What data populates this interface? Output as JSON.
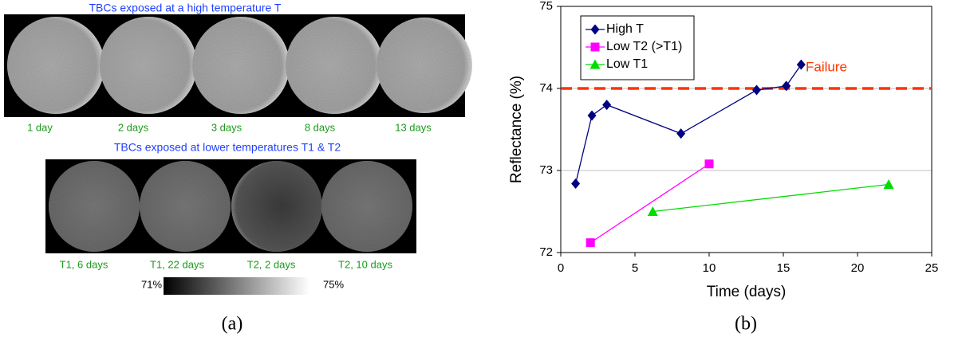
{
  "panel_a": {
    "title_top": "TBCs exposed at a high temperature T",
    "labels_top": [
      "1 day",
      "2 days",
      "3 days",
      "8 days",
      "13 days"
    ],
    "title_bottom": "TBCs exposed at lower temperatures T1 & T2",
    "labels_bottom": [
      "T1, 6 days",
      "T1, 22 days",
      "T2, 2 days",
      "T2, 10 days"
    ],
    "scale_min": "71%",
    "scale_max": "75%",
    "panel_label": "(a)"
  },
  "chart_data": {
    "type": "line",
    "panel_label": "(b)",
    "x_label": "Time (days)",
    "y_label": "Reflectance (%)",
    "xlim": [
      0,
      25
    ],
    "xticks": [
      0,
      5,
      10,
      15,
      20,
      25
    ],
    "ylim": [
      72,
      75
    ],
    "yticks": [
      72,
      73,
      74,
      75
    ],
    "grid": true,
    "legend": "upper left",
    "threshold": {
      "value": 74,
      "label": "Failure",
      "color": "#ff3300"
    },
    "series": [
      {
        "name": "High T",
        "color": "#000080",
        "marker": "diamond",
        "x": [
          1.0,
          2.1,
          3.1,
          8.1,
          13.2,
          15.2,
          16.2
        ],
        "values": [
          72.84,
          73.67,
          73.8,
          73.45,
          73.98,
          74.03,
          74.29
        ]
      },
      {
        "name": "Low T2 (>T1)",
        "color": "#ff00ff",
        "marker": "square",
        "x": [
          2.0,
          10.0
        ],
        "values": [
          72.12,
          73.08
        ]
      },
      {
        "name": "Low T1",
        "color": "#00dd00",
        "marker": "triangle",
        "x": [
          6.2,
          22.1
        ],
        "values": [
          72.5,
          72.83
        ]
      }
    ]
  }
}
